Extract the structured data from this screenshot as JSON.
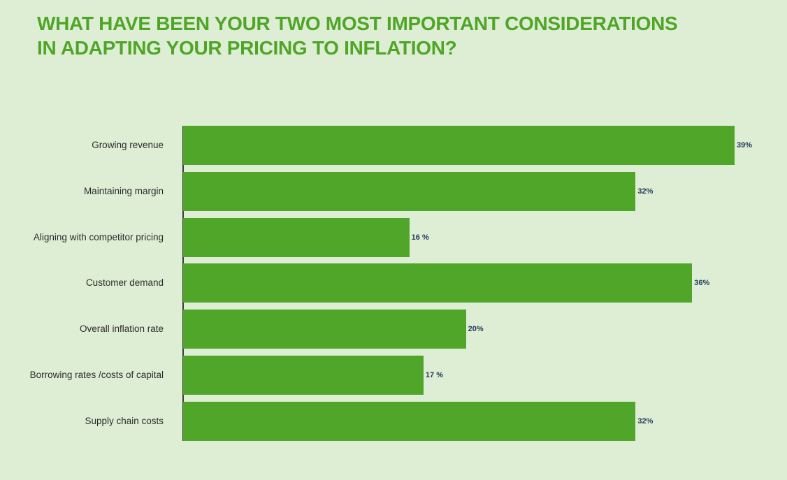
{
  "title": {
    "line1": "What have been your two most important considerations",
    "line2": "in adapting your pricing to inflation?"
  },
  "colors": {
    "bar": "#50a628",
    "title": "#4fa626",
    "background": "#deeed5",
    "value_text": "#1f3a5a"
  },
  "chart_data": {
    "type": "bar",
    "orientation": "horizontal",
    "title": "WHAT HAVE BEEN YOUR TWO MOST IMPORTANT CONSIDERATIONS IN ADAPTING YOUR PRICING TO INFLATION?",
    "xlabel": "",
    "ylabel": "",
    "grid": false,
    "legend": null,
    "categories": [
      "Growing revenue",
      "Maintaining margin",
      "Aligning with competitor pricing",
      "Customer demand",
      "Overall inflation rate",
      "Borrowing rates /costs of capital",
      "Supply chain costs"
    ],
    "values": [
      39,
      32,
      16,
      36,
      20,
      17,
      32
    ],
    "value_labels": [
      "39%",
      "32%",
      "16 %",
      "36%",
      "20%",
      "17 %",
      "32%"
    ],
    "unit": "%"
  }
}
